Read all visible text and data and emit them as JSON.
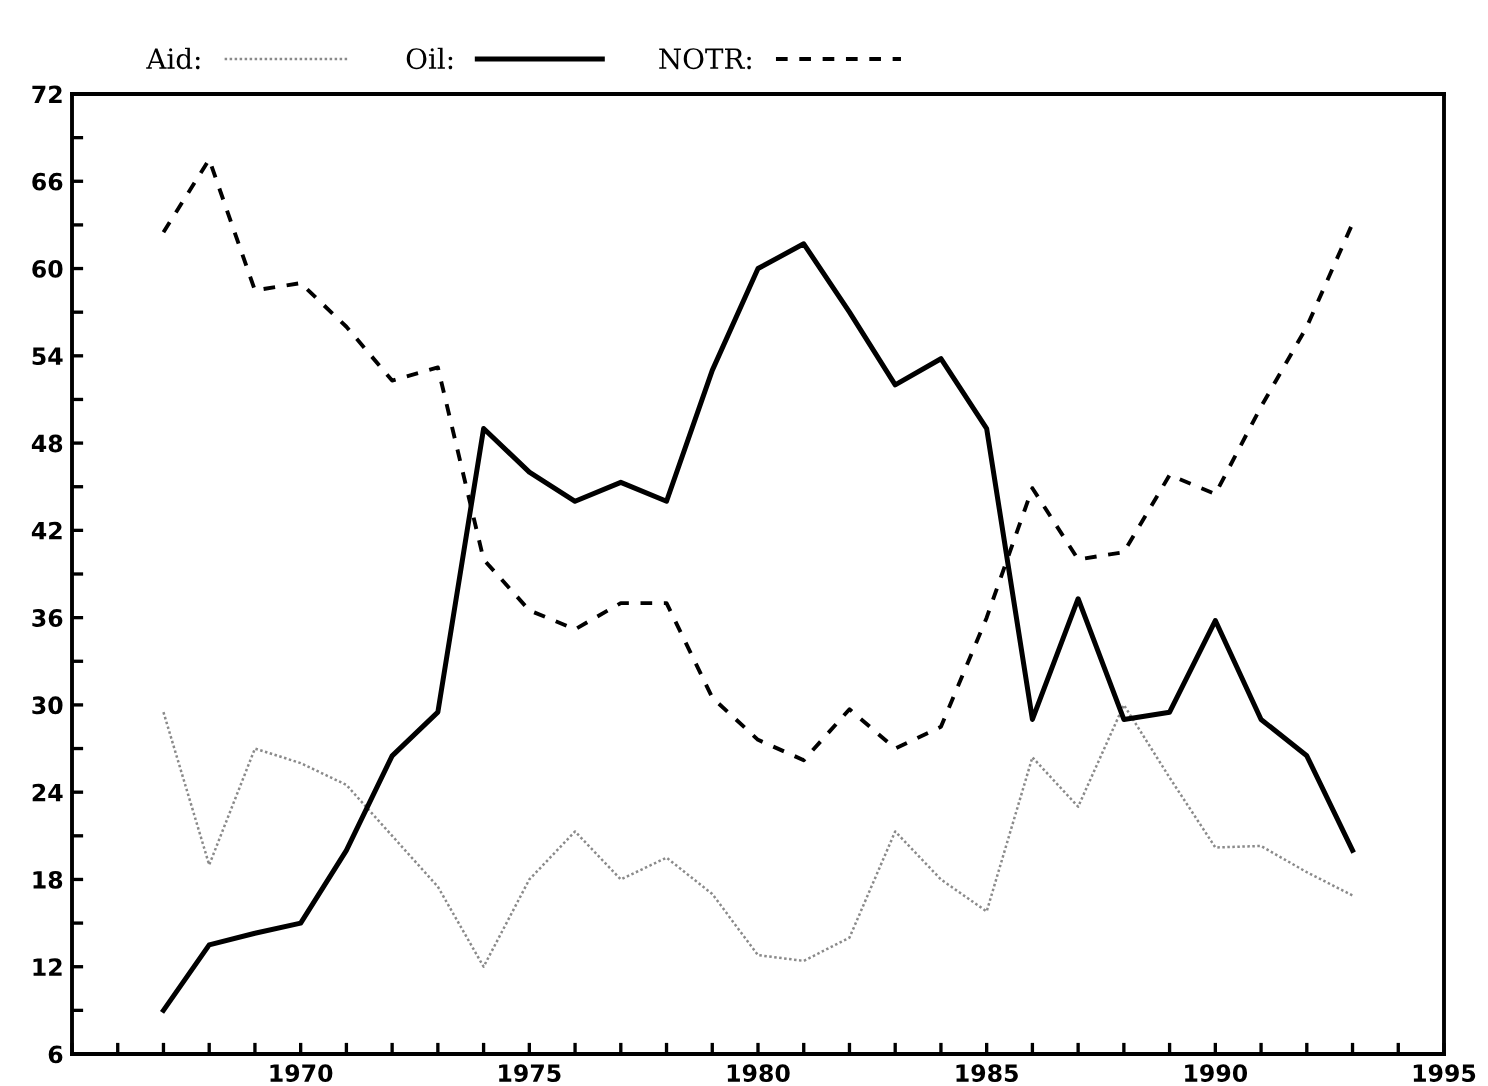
{
  "chart_data": {
    "type": "line",
    "x": [
      1967,
      1968,
      1969,
      1970,
      1971,
      1972,
      1973,
      1974,
      1975,
      1976,
      1977,
      1978,
      1979,
      1980,
      1981,
      1982,
      1983,
      1984,
      1985,
      1986,
      1987,
      1988,
      1989,
      1990,
      1991,
      1992,
      1993
    ],
    "series": [
      {
        "name": "Aid:",
        "color": "#8a8a8a",
        "line_style": "dotted",
        "values": [
          29.5,
          19,
          27,
          26,
          24.5,
          21,
          17.5,
          12,
          18,
          21.3,
          18,
          19.5,
          17,
          12.8,
          12.4,
          14,
          21.3,
          18,
          15.8,
          26.4,
          23,
          30,
          25,
          20.2,
          20.3,
          18.5,
          16.9
        ]
      },
      {
        "name": "Oil:",
        "color": "#000000",
        "line_style": "solid",
        "values": [
          9,
          13.5,
          14.3,
          15,
          20,
          26.5,
          29.5,
          49,
          46,
          44,
          45.3,
          44,
          53,
          60,
          61.7,
          57,
          52,
          53.8,
          49,
          29,
          37.3,
          29,
          29.5,
          35.8,
          29,
          26.5,
          20
        ]
      },
      {
        "name": "NOTR:",
        "color": "#000000",
        "line_style": "dashed",
        "values": [
          62.5,
          67.5,
          58.5,
          59,
          56,
          52.3,
          53.2,
          40,
          36.5,
          35.2,
          37,
          37,
          30.5,
          27.6,
          26.2,
          29.7,
          27,
          28.5,
          36,
          44.9,
          40,
          40.5,
          45.8,
          44.5,
          50.5,
          56,
          63.1
        ]
      }
    ],
    "xlim": [
      1965,
      1995
    ],
    "xticks": [
      {
        "value": 1965,
        "label": null
      },
      {
        "value": 1966,
        "label": null
      },
      {
        "value": 1967,
        "label": null
      },
      {
        "value": 1968,
        "label": null
      },
      {
        "value": 1969,
        "label": null
      },
      1970,
      {
        "value": 1971,
        "label": null
      },
      {
        "value": 1972,
        "label": null
      },
      {
        "value": 1973,
        "label": null
      },
      {
        "value": 1974,
        "label": null
      },
      1975,
      {
        "value": 1976,
        "label": null
      },
      {
        "value": 1977,
        "label": null
      },
      {
        "value": 1978,
        "label": null
      },
      {
        "value": 1979,
        "label": null
      },
      1980,
      {
        "value": 1981,
        "label": null
      },
      {
        "value": 1982,
        "label": null
      },
      {
        "value": 1983,
        "label": null
      },
      {
        "value": 1984,
        "label": null
      },
      1985,
      {
        "value": 1986,
        "label": null
      },
      {
        "value": 1987,
        "label": null
      },
      {
        "value": 1988,
        "label": null
      },
      {
        "value": 1989,
        "label": null
      },
      1990,
      {
        "value": 1991,
        "label": null
      },
      {
        "value": 1992,
        "label": null
      },
      {
        "value": 1993,
        "label": null
      },
      {
        "value": 1994,
        "label": null
      },
      1995
    ],
    "ylim": [
      6,
      72
    ],
    "yticks": [
      6,
      {
        "value": 9,
        "label": null
      },
      12,
      {
        "value": 15,
        "label": null
      },
      18,
      {
        "value": 21,
        "label": null
      },
      24,
      {
        "value": 27,
        "label": null
      },
      30,
      {
        "value": 33,
        "label": null
      },
      36,
      {
        "value": 39,
        "label": null
      },
      42,
      {
        "value": 45,
        "label": null
      },
      48,
      {
        "value": 51,
        "label": null
      },
      54,
      {
        "value": 57,
        "label": null
      },
      60,
      {
        "value": 63,
        "label": null
      },
      66,
      {
        "value": 69,
        "label": null
      },
      72
    ],
    "grid": false,
    "legend": "top left",
    "marker": "none"
  }
}
